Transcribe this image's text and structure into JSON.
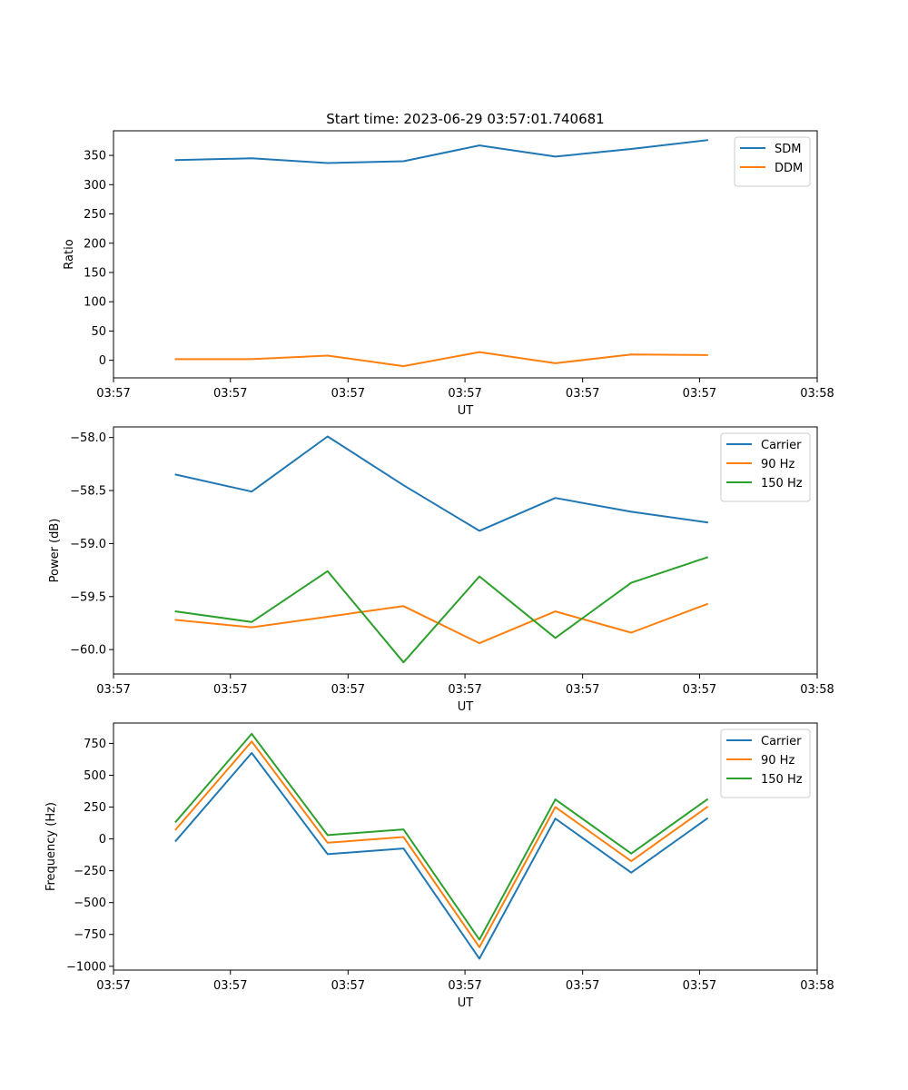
{
  "title": "Start time: 2023-06-29 03:57:01.740681",
  "chart_data": [
    {
      "type": "line",
      "xlabel": "UT",
      "ylabel": "Ratio",
      "x": [
        1,
        2,
        3,
        4,
        5,
        6,
        7,
        8
      ],
      "xlim": [
        0.18,
        9.45
      ],
      "xticks": [
        0.18,
        1.72,
        3.27,
        4.81,
        6.36,
        7.9,
        9.45
      ],
      "xtick_labels": [
        "03:57",
        "03:57",
        "03:57",
        "03:57",
        "03:57",
        "03:57",
        "03:58"
      ],
      "ylim": [
        -30,
        392
      ],
      "yticks": [
        0,
        50,
        100,
        150,
        200,
        250,
        300,
        350
      ],
      "ytick_labels": [
        "0",
        "50",
        "100",
        "150",
        "200",
        "250",
        "300",
        "350"
      ],
      "legend": "top-right",
      "series": [
        {
          "name": "SDM",
          "color": "#1f77b4",
          "values": [
            342,
            345,
            337,
            340,
            367,
            348,
            361,
            376
          ]
        },
        {
          "name": "DDM",
          "color": "#ff7f0e",
          "values": [
            2,
            2,
            8,
            -10,
            14,
            -5,
            10,
            9
          ]
        }
      ]
    },
    {
      "type": "line",
      "xlabel": "UT",
      "ylabel": "Power (dB)",
      "x": [
        1,
        2,
        3,
        4,
        5,
        6,
        7,
        8
      ],
      "xlim": [
        0.18,
        9.45
      ],
      "xticks": [
        0.18,
        1.72,
        3.27,
        4.81,
        6.36,
        7.9,
        9.45
      ],
      "xtick_labels": [
        "03:57",
        "03:57",
        "03:57",
        "03:57",
        "03:57",
        "03:57",
        "03:58"
      ],
      "ylim": [
        -60.23,
        -57.9
      ],
      "yticks": [
        -60.0,
        -59.5,
        -59.0,
        -58.5,
        -58.0
      ],
      "ytick_labels": [
        "−60.0",
        "−59.5",
        "−59.0",
        "−58.5",
        "−58.0"
      ],
      "legend": "top-right",
      "series": [
        {
          "name": "Carrier",
          "color": "#1f77b4",
          "values": [
            -58.35,
            -58.51,
            -57.99,
            -58.45,
            -58.88,
            -58.57,
            -58.7,
            -58.8
          ]
        },
        {
          "name": "90 Hz",
          "color": "#ff7f0e",
          "values": [
            -59.72,
            -59.79,
            -59.69,
            -59.59,
            -59.94,
            -59.64,
            -59.84,
            -59.57
          ]
        },
        {
          "name": "150 Hz",
          "color": "#2ca02c",
          "values": [
            -59.64,
            -59.74,
            -59.26,
            -60.12,
            -59.31,
            -59.89,
            -59.37,
            -59.13
          ]
        }
      ]
    },
    {
      "type": "line",
      "xlabel": "UT",
      "ylabel": "Frequency (Hz)",
      "x": [
        1,
        2,
        3,
        4,
        5,
        6,
        7,
        8
      ],
      "xlim": [
        0.18,
        9.45
      ],
      "xticks": [
        0.18,
        1.72,
        3.27,
        4.81,
        6.36,
        7.9,
        9.45
      ],
      "xtick_labels": [
        "03:57",
        "03:57",
        "03:57",
        "03:57",
        "03:57",
        "03:57",
        "03:58"
      ],
      "ylim": [
        -1030,
        910
      ],
      "yticks": [
        -1000,
        -750,
        -500,
        -250,
        0,
        250,
        500,
        750
      ],
      "ytick_labels": [
        "−1000",
        "−750",
        "−500",
        "−250",
        "0",
        "250",
        "500",
        "750"
      ],
      "legend": "top-right",
      "series": [
        {
          "name": "Carrier",
          "color": "#1f77b4",
          "values": [
            -15,
            675,
            -120,
            -75,
            -940,
            160,
            -265,
            160
          ]
        },
        {
          "name": "90 Hz",
          "color": "#ff7f0e",
          "values": [
            75,
            765,
            -30,
            15,
            -850,
            250,
            -175,
            250
          ]
        },
        {
          "name": "150 Hz",
          "color": "#2ca02c",
          "values": [
            135,
            825,
            30,
            75,
            -790,
            310,
            -115,
            310
          ]
        }
      ]
    }
  ]
}
